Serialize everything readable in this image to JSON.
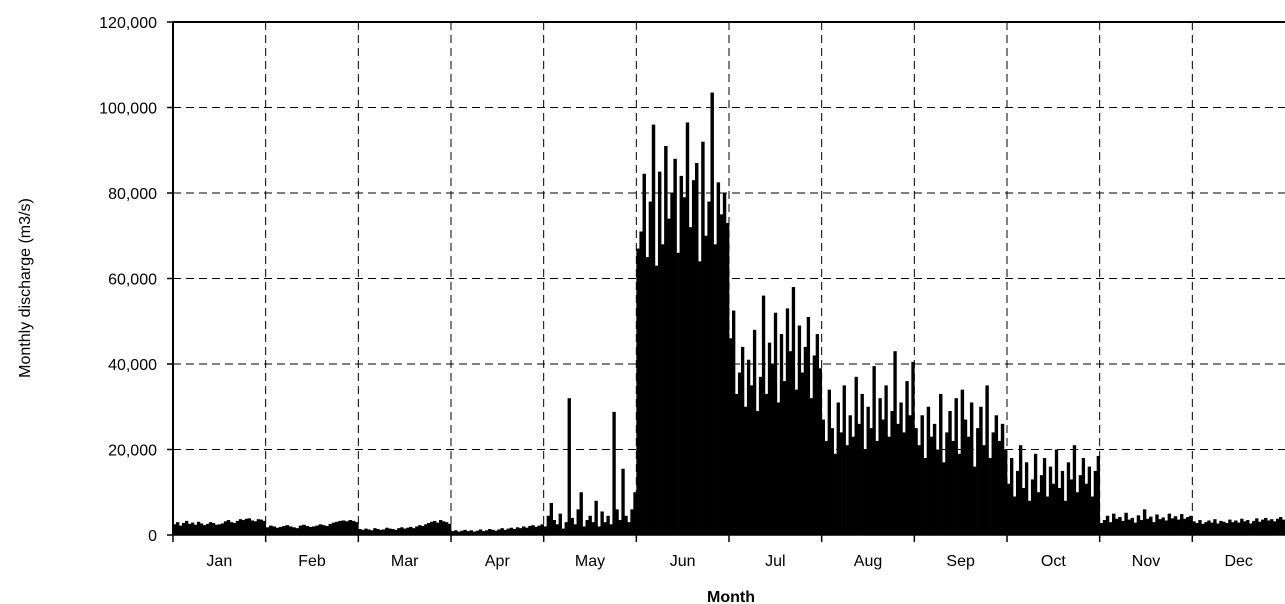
{
  "chart_data": {
    "type": "bar",
    "title": "",
    "xlabel": "Month",
    "ylabel": "Monthly discharge (m3/s)",
    "ylim": [
      0,
      120000
    ],
    "yticks": [
      0,
      20000,
      40000,
      60000,
      80000,
      100000,
      120000
    ],
    "ytick_labels": [
      "0",
      "20,000",
      "40,000",
      "60,000",
      "80,000",
      "100,000",
      "120,000"
    ],
    "categories": [
      "Jan",
      "Feb",
      "Mar",
      "Apr",
      "May",
      "Jun",
      "Jul",
      "Aug",
      "Sep",
      "Oct",
      "Nov",
      "Dec"
    ],
    "grid": true,
    "bar_color": "#000000",
    "series": [
      {
        "values_by_month": [
          [
            2500,
            3000,
            2200,
            2800,
            3300,
            2600,
            2900,
            2400,
            3100,
            2700,
            2300,
            2600,
            3000,
            2800,
            2400,
            2500,
            2700,
            3200,
            3500,
            3000,
            2800,
            3300,
            3700,
            3500,
            3800,
            3900,
            3400,
            3200,
            3700,
            3600,
            3300
          ],
          [
            1800,
            2200,
            2000,
            1700,
            1900,
            2100,
            2300,
            2000,
            1800,
            1600,
            2200,
            2400,
            2100,
            1900,
            2000,
            2200,
            2500,
            2300,
            2100,
            2600,
            2900,
            3100,
            3300,
            3400,
            3200,
            3500,
            3300,
            3000
          ],
          [
            1400,
            1200,
            1500,
            1300,
            1100,
            1600,
            1400,
            1200,
            1300,
            1700,
            1500,
            1400,
            1200,
            1600,
            1800,
            1500,
            1700,
            1900,
            1600,
            2000,
            2300,
            2100,
            2500,
            2800,
            3100,
            3300,
            2900,
            3500,
            3200,
            3000,
            2600
          ],
          [
            900,
            1100,
            800,
            1000,
            1200,
            900,
            1100,
            800,
            1000,
            1300,
            900,
            1100,
            1400,
            1200,
            1000,
            1300,
            1600,
            1200,
            1500,
            1700,
            1400,
            1800,
            1600,
            2000,
            1700,
            2100,
            2300,
            1900,
            2200,
            2500
          ],
          [
            2000,
            4500,
            7500,
            3500,
            2500,
            5000,
            1500,
            3000,
            32000,
            4000,
            2500,
            6000,
            10000,
            2000,
            3500,
            4500,
            3000,
            8000,
            2000,
            5500,
            3000,
            4500,
            2500,
            28800,
            6000,
            3500,
            15500,
            4500,
            3000,
            6000,
            10000
          ],
          [
            67000,
            71000,
            84500,
            65000,
            78000,
            96000,
            63000,
            85000,
            68000,
            91000,
            74000,
            80000,
            88000,
            66000,
            84000,
            79000,
            96500,
            72000,
            83000,
            87000,
            64000,
            92000,
            70000,
            78000,
            103500,
            68000,
            82500,
            75000,
            80000,
            73000
          ],
          [
            46000,
            52500,
            33000,
            38000,
            44000,
            30000,
            41000,
            35000,
            48000,
            29000,
            37000,
            56000,
            33000,
            45000,
            40000,
            52000,
            31000,
            47000,
            36000,
            53000,
            43000,
            58000,
            34000,
            49000,
            38000,
            44000,
            51000,
            32000,
            42000,
            47000,
            39000
          ],
          [
            27000,
            22000,
            34000,
            25000,
            19000,
            31000,
            24000,
            35000,
            21000,
            28000,
            23000,
            37000,
            26000,
            33000,
            20000,
            30000,
            25000,
            39500,
            22000,
            32000,
            27000,
            35000,
            23000,
            29000,
            43000,
            26000,
            31000,
            24000,
            36000,
            28000,
            40500
          ],
          [
            25000,
            21000,
            28000,
            18000,
            30000,
            23000,
            26000,
            20000,
            33000,
            17000,
            24000,
            29000,
            22000,
            32000,
            19000,
            34000,
            27000,
            23000,
            31000,
            16000,
            25000,
            30000,
            21000,
            35000,
            18000,
            24000,
            28000,
            22000,
            26000,
            20000
          ],
          [
            12000,
            18000,
            9000,
            15000,
            21000,
            11000,
            17000,
            8000,
            13000,
            19000,
            10000,
            14000,
            18000,
            9000,
            16000,
            12000,
            20000,
            11000,
            15000,
            8000,
            17000,
            13000,
            21000,
            10000,
            14000,
            18000,
            12000,
            16000,
            9000,
            15000,
            18500
          ],
          [
            2800,
            3500,
            4500,
            3000,
            5000,
            3800,
            4200,
            3300,
            5200,
            3600,
            4000,
            2900,
            4600,
            3500,
            6000,
            3800,
            4300,
            3000,
            4800,
            3700,
            4100,
            3400,
            5000,
            3900,
            4400,
            3600,
            4900,
            3800,
            4200,
            4500
          ],
          [
            3200,
            2800,
            3500,
            2600,
            3000,
            3400,
            2900,
            3700,
            2700,
            3300,
            3100,
            2800,
            3600,
            3000,
            3400,
            2900,
            3800,
            3200,
            3500,
            2700,
            3300,
            3900,
            3100,
            3600,
            4000,
            3400,
            3700,
            3200,
            3800,
            4200,
            3600
          ]
        ]
      }
    ]
  }
}
